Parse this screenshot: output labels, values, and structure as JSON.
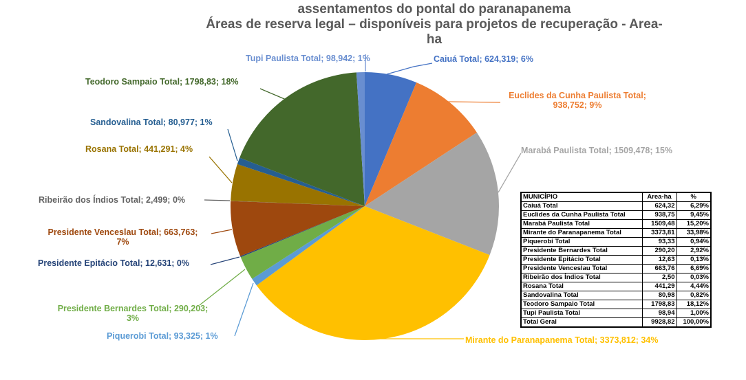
{
  "title": {
    "line1": "assentamentos do pontal do paranapanema",
    "line2": "Áreas de reserva legal –  disponíveis para projetos de recuperação - Area-",
    "line3": "ha",
    "color": "#595959"
  },
  "chart_data": {
    "type": "pie",
    "title": "assentamentos do pontal do paranapanema Áreas de reserva legal – disponíveis para projetos de recuperação - Area-ha",
    "unit": "Area-ha",
    "start_angle_deg": 0,
    "direction": "clockwise",
    "legend": "none",
    "slices": [
      {
        "id": "caiua",
        "name": "Caiuá Total",
        "value": 624.319,
        "pct": 6.29,
        "color": "#4472C4",
        "label_lines": [
          "Caiuá Total; 624,319; 6%"
        ]
      },
      {
        "id": "euclides",
        "name": "Euclides da Cunha Paulista Total",
        "value": 938.752,
        "pct": 9.45,
        "color": "#ED7D31",
        "label_lines": [
          "Euclides da Cunha Paulista Total;",
          "938,752; 9%"
        ]
      },
      {
        "id": "maraba",
        "name": "Marabá Paulista Total",
        "value": 1509.478,
        "pct": 15.2,
        "color": "#A5A5A5",
        "label_lines": [
          "Marabá Paulista Total; 1509,478; 15%"
        ]
      },
      {
        "id": "mirante",
        "name": "Mirante do Paranapanema Total",
        "value": 3373.812,
        "pct": 33.98,
        "color": "#FFC000",
        "label_lines": [
          "Mirante do Paranapanema Total; 3373,812; 34%"
        ]
      },
      {
        "id": "piquerobi",
        "name": "Piquerobi Total",
        "value": 93.325,
        "pct": 0.94,
        "color": "#5B9BD5",
        "label_lines": [
          "Piquerobi Total; 93,325; 1%"
        ]
      },
      {
        "id": "bernardes",
        "name": "Presidente Bernardes Total",
        "value": 290.203,
        "pct": 2.92,
        "color": "#70AD47",
        "label_lines": [
          "Presidente Bernardes Total; 290,203;",
          "3%"
        ]
      },
      {
        "id": "epitacio",
        "name": "Presidente Epitácio Total",
        "value": 12.631,
        "pct": 0.13,
        "color": "#264478",
        "label_lines": [
          "Presidente Epitácio Total; 12,631; 0%"
        ]
      },
      {
        "id": "venceslau",
        "name": "Presidente Venceslau Total",
        "value": 663.763,
        "pct": 6.69,
        "color": "#9E480E",
        "label_lines": [
          "Presidente Venceslau Total; 663,763;",
          "7%"
        ]
      },
      {
        "id": "ribeirao",
        "name": "Ribeirão dos Índios Total",
        "value": 2.499,
        "pct": 0.03,
        "color": "#636363",
        "label_lines": [
          "Ribeirão dos Índios Total; 2,499; 0%"
        ]
      },
      {
        "id": "rosana",
        "name": "Rosana Total",
        "value": 441.291,
        "pct": 4.44,
        "color": "#997300",
        "label_lines": [
          "Rosana Total; 441,291; 4%"
        ]
      },
      {
        "id": "sandovalina",
        "name": "Sandovalina Total",
        "value": 80.977,
        "pct": 0.82,
        "color": "#255E91",
        "label_lines": [
          "Sandovalina Total; 80,977; 1%"
        ]
      },
      {
        "id": "teodoro",
        "name": "Teodoro Sampaio Total",
        "value": 1798.83,
        "pct": 18.12,
        "color": "#43682B",
        "label_lines": [
          "Teodoro Sampaio Total; 1798,83; 18%"
        ]
      },
      {
        "id": "tupi",
        "name": "Tupi Paulista Total",
        "value": 98.942,
        "pct": 1.0,
        "color": "#698ED0",
        "label_lines": [
          "Tupi Paulista Total; 98,942; 1%"
        ]
      }
    ]
  },
  "table": {
    "headers": [
      "MUNICÍPIO",
      "Area-ha",
      "%"
    ],
    "rows": [
      [
        "Caiuá Total",
        "624,32",
        "6,29%"
      ],
      [
        "Euclides da Cunha Paulista Total",
        "938,75",
        "9,45%"
      ],
      [
        "Marabá Paulista Total",
        "1509,48",
        "15,20%"
      ],
      [
        "Mirante do Paranapanema Total",
        "3373,81",
        "33,98%"
      ],
      [
        "Piquerobi Total",
        "93,33",
        "0,94%"
      ],
      [
        "Presidente Bernardes Total",
        "290,20",
        "2,92%"
      ],
      [
        "Presidente Epitácio Total",
        "12,63",
        "0,13%"
      ],
      [
        "Presidente Venceslau Total",
        "663,76",
        "6,69%"
      ],
      [
        "Ribeirão dos Índios Total",
        "2,50",
        "0,03%"
      ],
      [
        "Rosana Total",
        "441,29",
        "4,44%"
      ],
      [
        "Sandovalina Total",
        "80,98",
        "0,82%"
      ],
      [
        "Teodoro Sampaio Total",
        "1798,83",
        "18,12%"
      ],
      [
        "Tupi Paulista Total",
        "98,94",
        "1,00%"
      ],
      [
        "Total Geral",
        "9928,82",
        "100,00%"
      ]
    ]
  }
}
